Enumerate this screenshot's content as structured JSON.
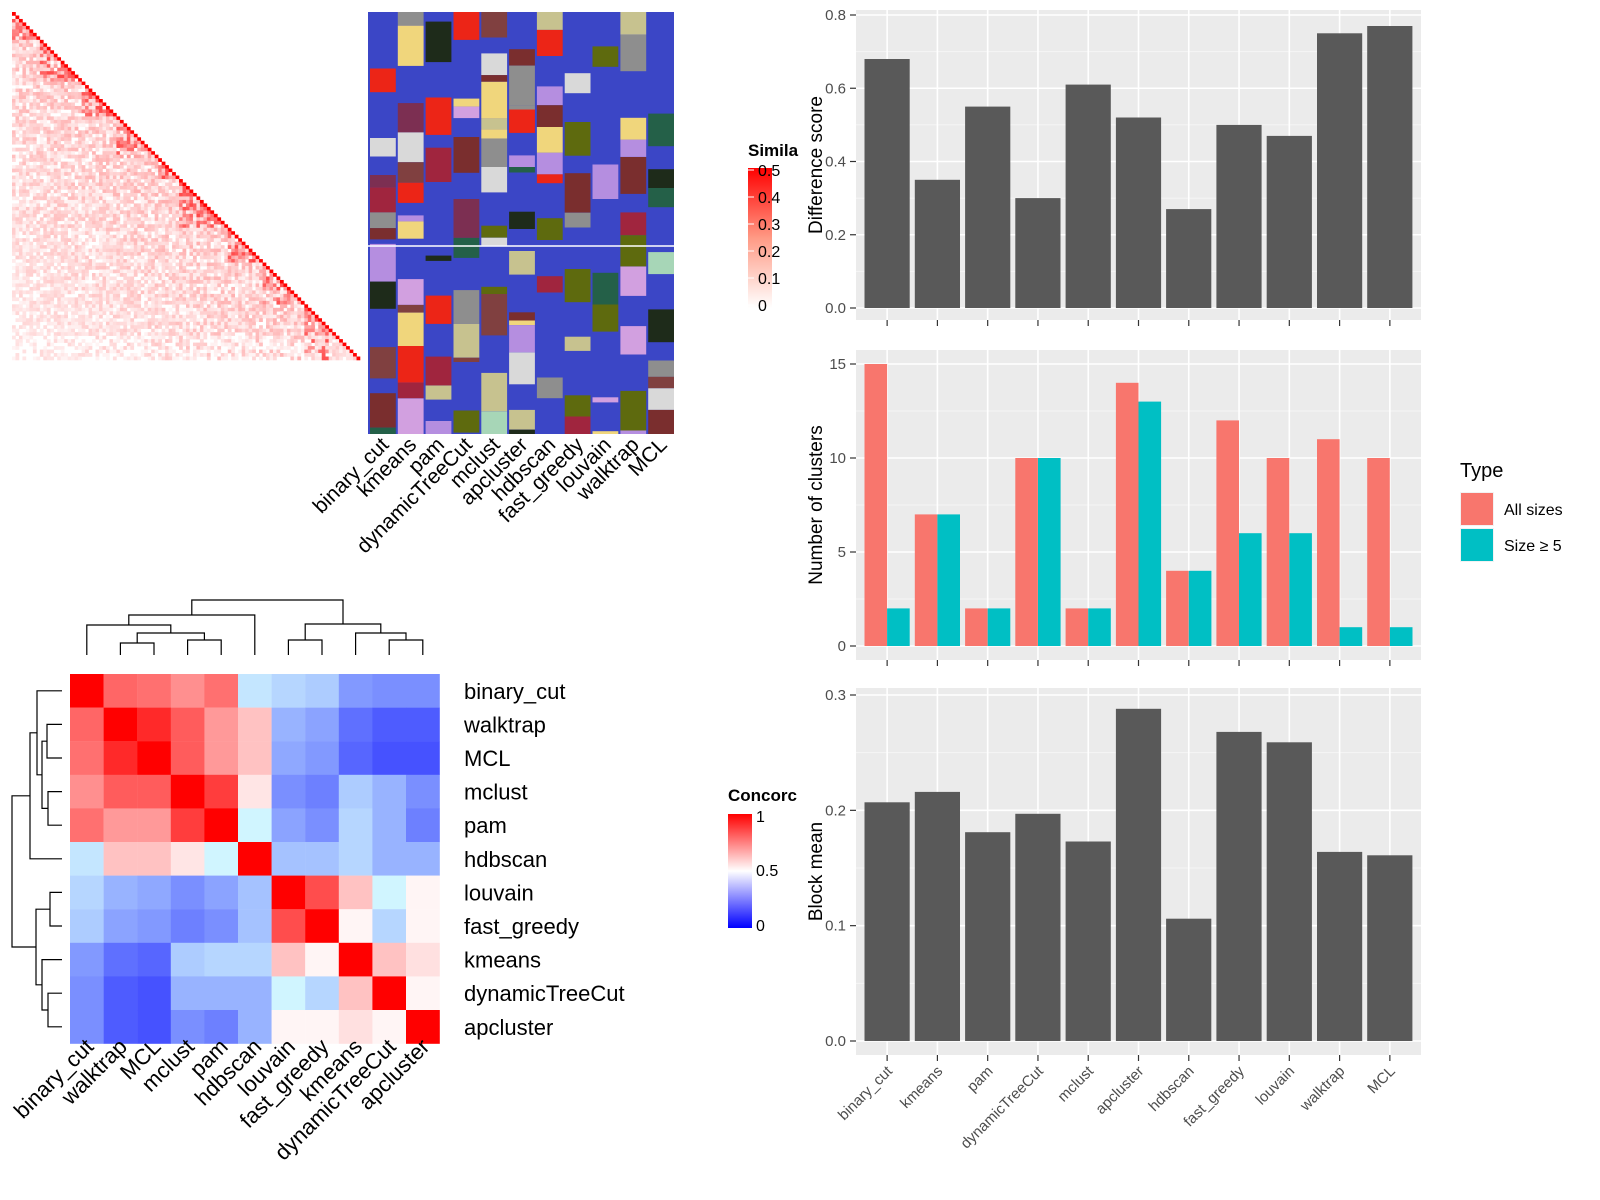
{
  "methods": [
    "binary_cut",
    "kmeans",
    "pam",
    "dynamicTreeCut",
    "mclust",
    "apcluster",
    "hdbscan",
    "fast_greedy",
    "louvain",
    "walktrap",
    "MCL"
  ],
  "similarity_legend": {
    "title": "Simila",
    "ticks": [
      "0.5",
      "0.4",
      "0.3",
      "0.2",
      "0.1",
      "0"
    ],
    "colors": {
      "low": "#ffffff",
      "high": "#ff0000"
    }
  },
  "concordance_legend": {
    "title": "Concorc",
    "ticks": [
      "1",
      "0.5",
      "0"
    ],
    "colors": {
      "low": "#0000ff",
      "mid": "#ffffff",
      "high": "#ff0000"
    }
  },
  "concordance": {
    "row_order": [
      "binary_cut",
      "walktrap",
      "MCL",
      "mclust",
      "pam",
      "hdbscan",
      "louvain",
      "fast_greedy",
      "kmeans",
      "dynamicTreeCut",
      "apcluster"
    ],
    "col_order": [
      "binary_cut",
      "walktrap",
      "MCL",
      "mclust",
      "pam",
      "hdbscan",
      "louvain",
      "fast_greedy",
      "kmeans",
      "dynamicTreeCut",
      "apcluster"
    ],
    "values": [
      [
        1.0,
        0.8,
        0.78,
        0.72,
        0.78,
        0.45,
        0.42,
        0.4,
        0.3,
        0.28,
        0.28
      ],
      [
        0.8,
        1.0,
        0.92,
        0.82,
        0.7,
        0.62,
        0.35,
        0.32,
        0.22,
        0.18,
        0.18
      ],
      [
        0.78,
        0.92,
        1.0,
        0.82,
        0.7,
        0.62,
        0.33,
        0.3,
        0.2,
        0.16,
        0.16
      ],
      [
        0.72,
        0.82,
        0.82,
        1.0,
        0.88,
        0.55,
        0.28,
        0.25,
        0.4,
        0.35,
        0.28
      ],
      [
        0.78,
        0.7,
        0.7,
        0.88,
        1.0,
        0.48,
        0.32,
        0.28,
        0.42,
        0.35,
        0.25
      ],
      [
        0.45,
        0.62,
        0.62,
        0.55,
        0.48,
        1.0,
        0.38,
        0.38,
        0.42,
        0.35,
        0.35
      ],
      [
        0.42,
        0.35,
        0.33,
        0.28,
        0.32,
        0.38,
        1.0,
        0.85,
        0.62,
        0.48,
        0.52
      ],
      [
        0.4,
        0.32,
        0.3,
        0.25,
        0.28,
        0.38,
        0.85,
        1.0,
        0.52,
        0.42,
        0.52
      ],
      [
        0.3,
        0.22,
        0.2,
        0.4,
        0.42,
        0.42,
        0.62,
        0.52,
        1.0,
        0.62,
        0.56
      ],
      [
        0.28,
        0.18,
        0.16,
        0.35,
        0.35,
        0.35,
        0.48,
        0.42,
        0.62,
        1.0,
        0.52
      ],
      [
        0.28,
        0.18,
        0.16,
        0.28,
        0.25,
        0.35,
        0.52,
        0.52,
        0.56,
        0.52,
        1.0
      ]
    ]
  },
  "chart_data": [
    {
      "type": "bar",
      "categories": [
        "binary_cut",
        "kmeans",
        "pam",
        "dynamicTreeCut",
        "mclust",
        "apcluster",
        "hdbscan",
        "fast_greedy",
        "louvain",
        "walktrap",
        "MCL"
      ],
      "values": [
        0.68,
        0.35,
        0.55,
        0.3,
        0.61,
        0.52,
        0.27,
        0.5,
        0.47,
        0.75,
        0.77
      ],
      "ylabel": "Difference score",
      "ylim": [
        0,
        0.8
      ],
      "yticks": [
        "0.0",
        "0.2",
        "0.4",
        "0.6",
        "0.8"
      ],
      "color": "#595959"
    },
    {
      "type": "bar",
      "categories": [
        "binary_cut",
        "kmeans",
        "pam",
        "dynamicTreeCut",
        "mclust",
        "apcluster",
        "hdbscan",
        "fast_greedy",
        "louvain",
        "walktrap",
        "MCL"
      ],
      "series": [
        {
          "name": "All sizes",
          "values": [
            15,
            7,
            2,
            10,
            2,
            14,
            4,
            12,
            10,
            11,
            10
          ],
          "color": "#f8766d"
        },
        {
          "name": "Size ≥ 5",
          "values": [
            2,
            7,
            2,
            10,
            2,
            13,
            4,
            6,
            6,
            1,
            1
          ],
          "color": "#00bfc4"
        }
      ],
      "ylabel": "Number of clusters",
      "ylim": [
        0,
        15
      ],
      "yticks": [
        "0",
        "5",
        "10",
        "15"
      ],
      "legend": {
        "title": "Type",
        "position": "right"
      }
    },
    {
      "type": "bar",
      "categories": [
        "binary_cut",
        "kmeans",
        "pam",
        "dynamicTreeCut",
        "mclust",
        "apcluster",
        "hdbscan",
        "fast_greedy",
        "louvain",
        "walktrap",
        "MCL"
      ],
      "values": [
        0.207,
        0.216,
        0.181,
        0.197,
        0.173,
        0.288,
        0.106,
        0.268,
        0.259,
        0.164,
        0.161
      ],
      "ylabel": "Block mean",
      "ylim": [
        0,
        0.3
      ],
      "yticks": [
        "0.0",
        "0.1",
        "0.2",
        "0.3"
      ],
      "color": "#595959"
    }
  ]
}
